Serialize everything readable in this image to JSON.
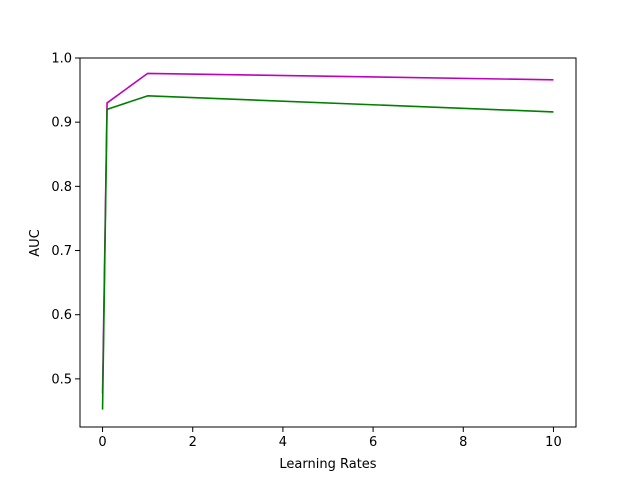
{
  "chart_data": {
    "type": "line",
    "title": "",
    "xlabel": "Learning Rates",
    "ylabel": "AUC",
    "xlim": [
      -0.5,
      10.5
    ],
    "ylim": [
      0.425,
      1.0
    ],
    "xticks": [
      0,
      2,
      4,
      6,
      8,
      10
    ],
    "yticks": [
      0.5,
      0.6,
      0.7,
      0.8,
      0.9,
      1.0
    ],
    "grid": false,
    "legend": "none",
    "series": [
      {
        "color": "#bf00bf",
        "x": [
          0,
          0.1,
          1,
          10
        ],
        "y": [
          0.477,
          0.93,
          0.976,
          0.966
        ]
      },
      {
        "color": "#008000",
        "x": [
          0,
          0.1,
          1,
          10
        ],
        "y": [
          0.452,
          0.92,
          0.941,
          0.916
        ]
      }
    ]
  }
}
